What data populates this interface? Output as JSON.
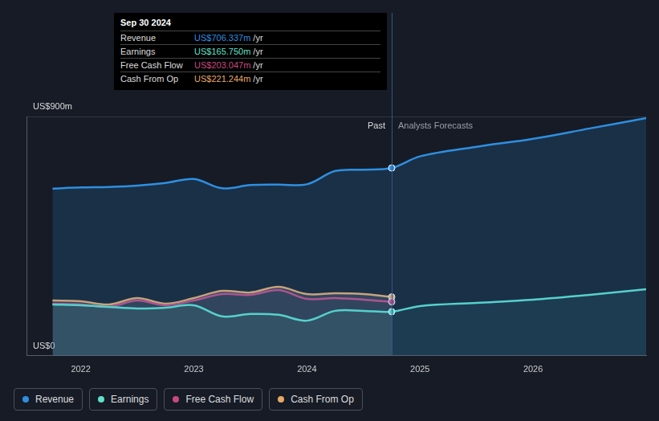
{
  "chart_data": {
    "type": "line",
    "x": [
      2021.75,
      2022.0,
      2022.25,
      2022.5,
      2022.75,
      2023.0,
      2023.25,
      2023.5,
      2023.75,
      2024.0,
      2024.25,
      2024.5,
      2024.75,
      2025.0,
      2025.5,
      2026.0,
      2026.5,
      2027.0
    ],
    "xlim": [
      2021.52,
      2027.0
    ],
    "xticks": [
      2022,
      2023,
      2024,
      2025,
      2026
    ],
    "ylim": [
      0,
      900
    ],
    "yticks": [
      {
        "value": 0,
        "label": "US$0"
      },
      {
        "value": 900,
        "label": "US$900m"
      }
    ],
    "grid": true,
    "legend": "bottom-left",
    "series": [
      {
        "name": "Revenue",
        "color": "#2e8fe0",
        "values": [
          629,
          633,
          635,
          640,
          650,
          665,
          630,
          642,
          644,
          645,
          695,
          700,
          706.337,
          750,
          786,
          816,
          855,
          894
        ]
      },
      {
        "name": "Earnings",
        "color": "#5fe0c8",
        "values": [
          193,
          190,
          184,
          178,
          181,
          190,
          148,
          157,
          154,
          132,
          169,
          169,
          165.75,
          187,
          199,
          211,
          229,
          250
        ]
      },
      {
        "name": "Free Cash Flow",
        "color": "#c9497f",
        "values": [
          196,
          193,
          184,
          208,
          190,
          208,
          232,
          229,
          247,
          214,
          217,
          211,
          203.047,
          null,
          null,
          null,
          null,
          null
        ]
      },
      {
        "name": "Cash From Op",
        "color": "#e8a866",
        "values": [
          208,
          205,
          193,
          217,
          196,
          217,
          244,
          238,
          259,
          232,
          235,
          232,
          221.244,
          null,
          null,
          null,
          null,
          null
        ]
      }
    ],
    "annotations": [
      {
        "text": "Past",
        "x": 2024.75
      },
      {
        "text": "Analysts Forecasts",
        "x": 2024.75
      }
    ],
    "tooltip": {
      "title": "Sep 30 2024",
      "rows": [
        {
          "name": "Revenue",
          "value": 706.337,
          "value_label": "US$706.337m",
          "unit": "/yr"
        },
        {
          "name": "Earnings",
          "value": 165.75,
          "value_label": "US$165.750m",
          "unit": "/yr"
        },
        {
          "name": "Free Cash Flow",
          "value": 203.047,
          "value_label": "US$203.047m",
          "unit": "/yr"
        },
        {
          "name": "Cash From Op",
          "value": 221.244,
          "value_label": "US$221.244m",
          "unit": "/yr"
        }
      ]
    }
  }
}
